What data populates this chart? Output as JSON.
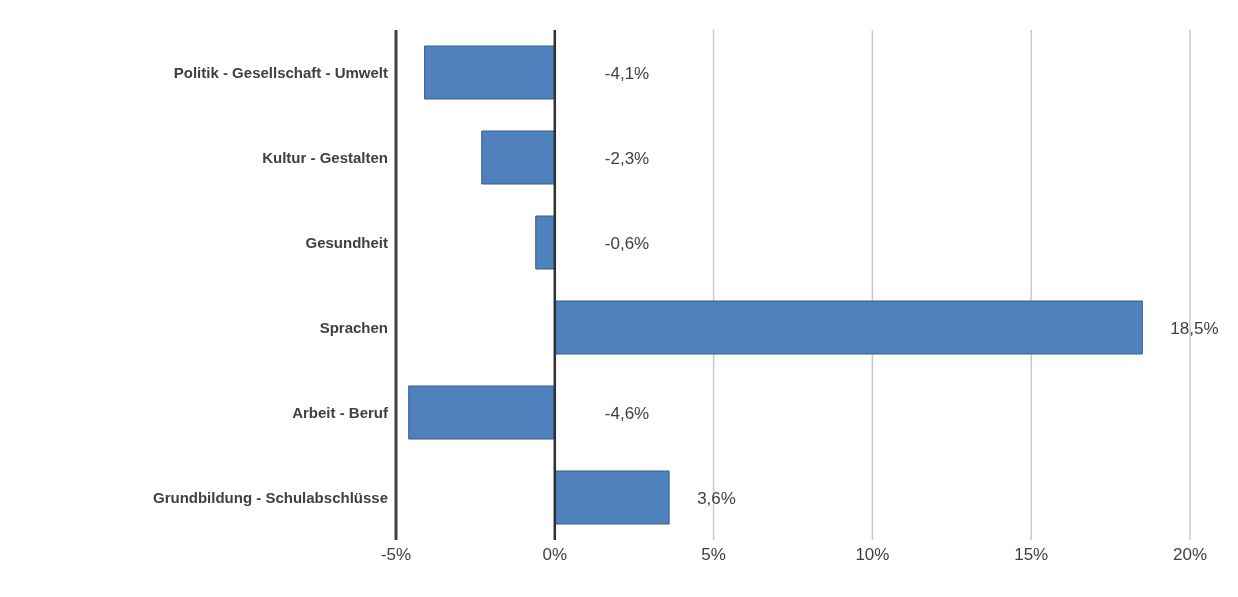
{
  "chart_data": {
    "type": "bar",
    "orientation": "horizontal",
    "categories": [
      "Politik - Gesellschaft - Umwelt",
      "Kultur - Gestalten",
      "Gesundheit",
      "Sprachen",
      "Arbeit - Beruf",
      "Grundbildung - Schulabschlüsse"
    ],
    "values": [
      -4.1,
      -2.3,
      -0.6,
      18.5,
      -4.6,
      3.6
    ],
    "value_labels": [
      "-4,1%",
      "-2,3%",
      "-0,6%",
      "18,5%",
      "-4,6%",
      "3,6%"
    ],
    "color": "#4f81bd",
    "xlim": [
      -5,
      20
    ],
    "xticks": [
      {
        "value": -5,
        "label": "-5%"
      },
      {
        "value": 0,
        "label": "0%"
      },
      {
        "value": 5,
        "label": "5%"
      },
      {
        "value": 10,
        "label": "10%"
      },
      {
        "value": 15,
        "label": "15%"
      },
      {
        "value": 20,
        "label": "20%"
      }
    ],
    "grid": "x"
  }
}
